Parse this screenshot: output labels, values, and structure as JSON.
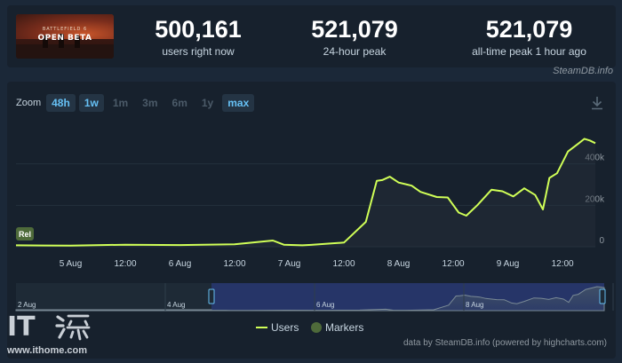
{
  "game": {
    "thumb_top": "BATTLEFIELD 6",
    "thumb_title": "OPEN BETA"
  },
  "stats": [
    {
      "value": "500,161",
      "label": "users right now"
    },
    {
      "value": "521,079",
      "label": "24-hour peak"
    },
    {
      "value": "521,079",
      "label": "all-time peak 1 hour ago"
    }
  ],
  "brand_corner": "SteamDB.info",
  "zoom": {
    "label": "Zoom",
    "buttons": [
      {
        "label": "48h",
        "active": true
      },
      {
        "label": "1w",
        "active": true
      },
      {
        "label": "1m",
        "active": false
      },
      {
        "label": "3m",
        "active": false
      },
      {
        "label": "6m",
        "active": false
      },
      {
        "label": "1y",
        "active": false
      },
      {
        "label": "max",
        "active": true
      }
    ]
  },
  "colors": {
    "line": "#d0ff57",
    "accent": "#66c0f4",
    "marker": "#4e6a3a"
  },
  "chart_data": {
    "type": "line",
    "title": "",
    "xlabel": "",
    "ylabel": "",
    "x_ticks": [
      "5 Aug",
      "12:00",
      "6 Aug",
      "12:00",
      "7 Aug",
      "12:00",
      "8 Aug",
      "12:00",
      "9 Aug",
      "12:00"
    ],
    "y_ticks": [
      "400k",
      "200k",
      "0"
    ],
    "ylim": [
      0,
      540000
    ],
    "x_range_days": [
      0,
      5.3
    ],
    "series": [
      {
        "name": "Users",
        "x": [
          0,
          0.25,
          0.5,
          1.0,
          1.5,
          2.0,
          2.35,
          2.45,
          2.55,
          2.62,
          2.7,
          3.0,
          3.2,
          3.3,
          3.35,
          3.42,
          3.5,
          3.58,
          3.62,
          3.7,
          3.85,
          3.95,
          4.05,
          4.12,
          4.22,
          4.35,
          4.45,
          4.55,
          4.65,
          4.75,
          4.82,
          4.88,
          4.95,
          5.05,
          5.15,
          5.2,
          5.25,
          5.3
        ],
        "values": [
          7000,
          6000,
          5000,
          10000,
          8000,
          12000,
          30000,
          10000,
          8000,
          7000,
          9000,
          20000,
          120000,
          318000,
          322000,
          338000,
          310000,
          300000,
          295000,
          265000,
          240000,
          238000,
          165000,
          150000,
          200000,
          275000,
          268000,
          243000,
          282000,
          250000,
          180000,
          332000,
          355000,
          460000,
          500000,
          521000,
          513000,
          500000
        ]
      }
    ],
    "legend": [
      "Users",
      "Markers"
    ],
    "release_marker": "Rel",
    "credit": "data by SteamDB.info (powered by highcharts.com)",
    "navigator_ticks": [
      "2 Aug",
      "4 Aug",
      "6 Aug",
      "8 Aug"
    ]
  },
  "brand": {
    "logo": "IT",
    "url": "www.ithome.com"
  }
}
